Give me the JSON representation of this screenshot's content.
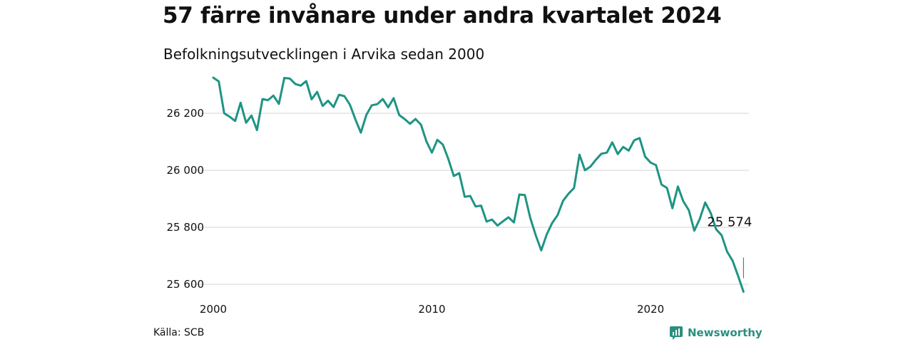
{
  "title": "57 färre invånare under andra kvartalet 2024",
  "subtitle": "Befolkningsutvecklingen i Arvika sedan 2000",
  "source": "Källa: SCB",
  "brand": {
    "name": "Newsworthy",
    "icon": "newsworthy-logo-icon",
    "color": "#2a8f7f"
  },
  "chart_data": {
    "type": "line",
    "title": "57 färre invånare under andra kvartalet 2024",
    "subtitle": "Befolkningsutvecklingen i Arvika sedan 2000",
    "xlabel": "",
    "ylabel": "",
    "color": "#1e9484",
    "grid": true,
    "xlim": [
      2000.0,
      2024.5
    ],
    "ylim": [
      25540,
      26360
    ],
    "xticks": [
      2000,
      2010,
      2020
    ],
    "xtick_labels": [
      "2000",
      "2010",
      "2020"
    ],
    "yticks": [
      25600,
      25800,
      26000,
      26200
    ],
    "ytick_labels": [
      "25 600",
      "25 800",
      "26 000",
      "26 200"
    ],
    "end_label": "25 574",
    "series": [
      {
        "x": [
          2000.0,
          2000.25,
          2000.5,
          2000.75,
          2001.0,
          2001.25,
          2001.5,
          2001.75,
          2002.0,
          2002.25,
          2002.5,
          2002.75,
          2003.0,
          2003.25,
          2003.5,
          2003.75,
          2004.0,
          2004.25,
          2004.5,
          2004.75,
          2005.0,
          2005.25,
          2005.5,
          2005.75,
          2006.0,
          2006.25,
          2006.5,
          2006.75,
          2007.0,
          2007.25,
          2007.5,
          2007.75,
          2008.0,
          2008.25,
          2008.5,
          2008.75,
          2009.0,
          2009.25,
          2009.5,
          2009.75,
          2010.0,
          2010.25,
          2010.5,
          2010.75,
          2011.0,
          2011.25,
          2011.5,
          2011.75,
          2012.0,
          2012.25,
          2012.5,
          2012.75,
          2013.0,
          2013.25,
          2013.5,
          2013.75,
          2014.0,
          2014.25,
          2014.5,
          2014.75,
          2015.0,
          2015.25,
          2015.5,
          2015.75,
          2016.0,
          2016.25,
          2016.5,
          2016.75,
          2017.0,
          2017.25,
          2017.5,
          2017.75,
          2018.0,
          2018.25,
          2018.5,
          2018.75,
          2019.0,
          2019.25,
          2019.5,
          2019.75,
          2020.0,
          2020.25,
          2020.5,
          2020.75,
          2021.0,
          2021.25,
          2021.5,
          2021.75,
          2022.0,
          2022.25,
          2022.5,
          2022.75,
          2023.0,
          2023.25,
          2023.5,
          2023.75,
          2024.0,
          2024.25
        ],
        "y": [
          26325,
          26312,
          26200,
          26188,
          26173,
          26237,
          26167,
          26192,
          26141,
          26250,
          26246,
          26262,
          26233,
          26324,
          26322,
          26303,
          26297,
          26313,
          26249,
          26275,
          26226,
          26244,
          26222,
          26265,
          26260,
          26230,
          26179,
          26132,
          26194,
          26228,
          26232,
          26250,
          26221,
          26253,
          26194,
          26180,
          26163,
          26180,
          26160,
          26101,
          26062,
          26107,
          26090,
          26040,
          25980,
          25990,
          25907,
          25910,
          25873,
          25876,
          25820,
          25827,
          25806,
          25821,
          25835,
          25817,
          25915,
          25913,
          25832,
          25772,
          25719,
          25775,
          25815,
          25843,
          25893,
          25918,
          25938,
          26055,
          26000,
          26013,
          26037,
          26058,
          26062,
          26098,
          26057,
          26082,
          26069,
          26105,
          26113,
          26048,
          26027,
          26018,
          25950,
          25938,
          25867,
          25943,
          25891,
          25860,
          25788,
          25829,
          25887,
          25850,
          25793,
          25772,
          25715,
          25683,
          25630,
          25574
        ]
      }
    ]
  }
}
